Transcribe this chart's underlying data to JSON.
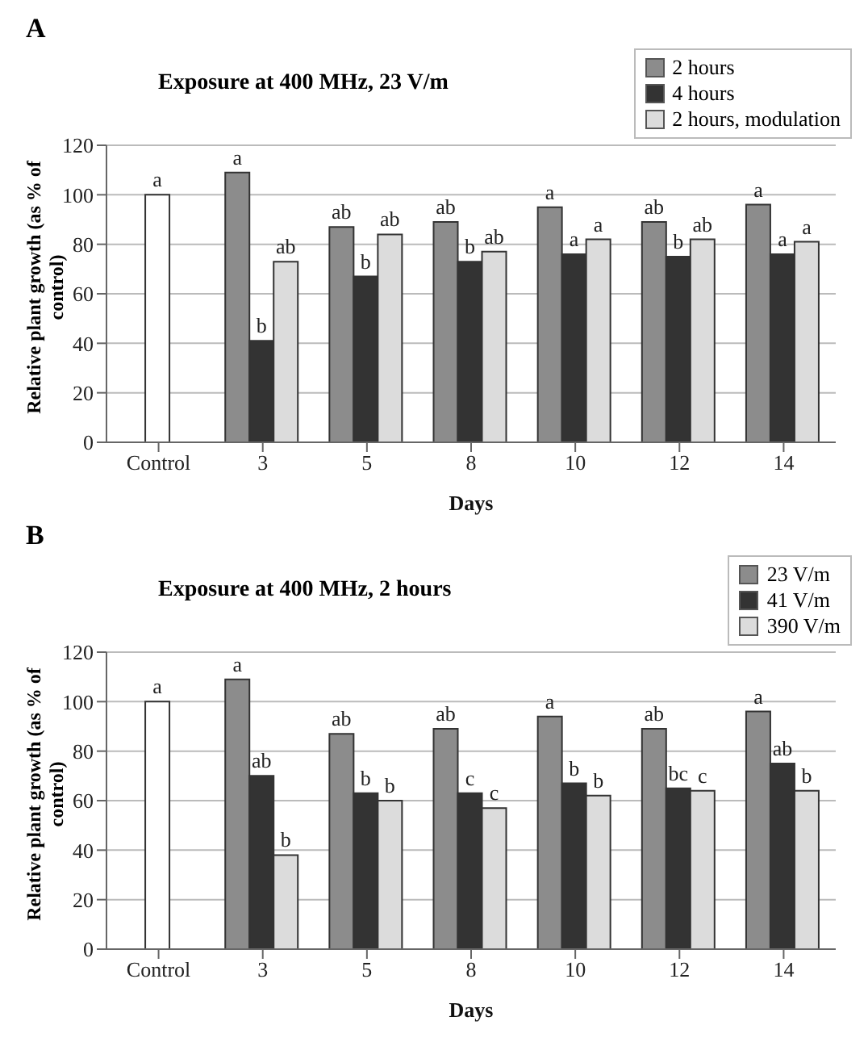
{
  "chart_data": [
    {
      "type": "bar",
      "title": "Exposure at 400 MHz, 23 V/m",
      "xlabel": "Days",
      "ylabel": "Relative plant growth (as % of control)",
      "annotations": [
        "A"
      ],
      "categories": [
        "Control",
        "3",
        "5",
        "8",
        "10",
        "12",
        "14"
      ],
      "ylim": [
        0,
        120
      ],
      "yticks": [
        0,
        20,
        40,
        60,
        80,
        100,
        120
      ],
      "grid": "y",
      "legend": "top right",
      "series": [
        {
          "name": "2 hours",
          "color": "#8c8c8c",
          "values": [
            null,
            109,
            87,
            89,
            95,
            89,
            96
          ],
          "value_labels": [
            null,
            "a",
            "ab",
            "ab",
            "a",
            "ab",
            "a"
          ]
        },
        {
          "name": "4 hours",
          "color": "#333333",
          "colors": [
            "#ffffff",
            "#333333",
            "#333333",
            "#333333",
            "#333333",
            "#333333",
            "#333333"
          ],
          "values": [
            100,
            41,
            67,
            73,
            76,
            75,
            76
          ],
          "value_labels": [
            "a",
            "b",
            "b",
            "b",
            "a",
            "b",
            "a"
          ]
        },
        {
          "name": "2 hours, modulation",
          "color": "#dcdcdc",
          "values": [
            null,
            73,
            84,
            77,
            82,
            82,
            81
          ],
          "value_labels": [
            null,
            "ab",
            "ab",
            "ab",
            "a",
            "ab",
            "a"
          ]
        }
      ]
    },
    {
      "type": "bar",
      "title": "Exposure at 400 MHz, 2 hours",
      "xlabel": "Days",
      "ylabel": "Relative plant growth (as % of control)",
      "annotations": [
        "B"
      ],
      "categories": [
        "Control",
        "3",
        "5",
        "8",
        "10",
        "12",
        "14"
      ],
      "ylim": [
        0,
        120
      ],
      "yticks": [
        0,
        20,
        40,
        60,
        80,
        100,
        120
      ],
      "grid": "y",
      "legend": "top right",
      "series": [
        {
          "name": "23 V/m",
          "color": "#8c8c8c",
          "values": [
            null,
            109,
            87,
            89,
            94,
            89,
            96
          ],
          "value_labels": [
            null,
            "a",
            "ab",
            "ab",
            "a",
            "ab",
            "a"
          ]
        },
        {
          "name": "41 V/m",
          "color": "#333333",
          "colors": [
            "#ffffff",
            "#333333",
            "#333333",
            "#333333",
            "#333333",
            "#333333",
            "#333333"
          ],
          "values": [
            100,
            70,
            63,
            63,
            67,
            65,
            75
          ],
          "value_labels": [
            "a",
            "ab",
            "b",
            "c",
            "b",
            "bc",
            "ab"
          ]
        },
        {
          "name": "390 V/m",
          "color": "#dcdcdc",
          "values": [
            null,
            38,
            60,
            57,
            62,
            64,
            64
          ],
          "value_labels": [
            null,
            "b",
            "b",
            "c",
            "b",
            "c",
            "b"
          ]
        }
      ]
    }
  ]
}
